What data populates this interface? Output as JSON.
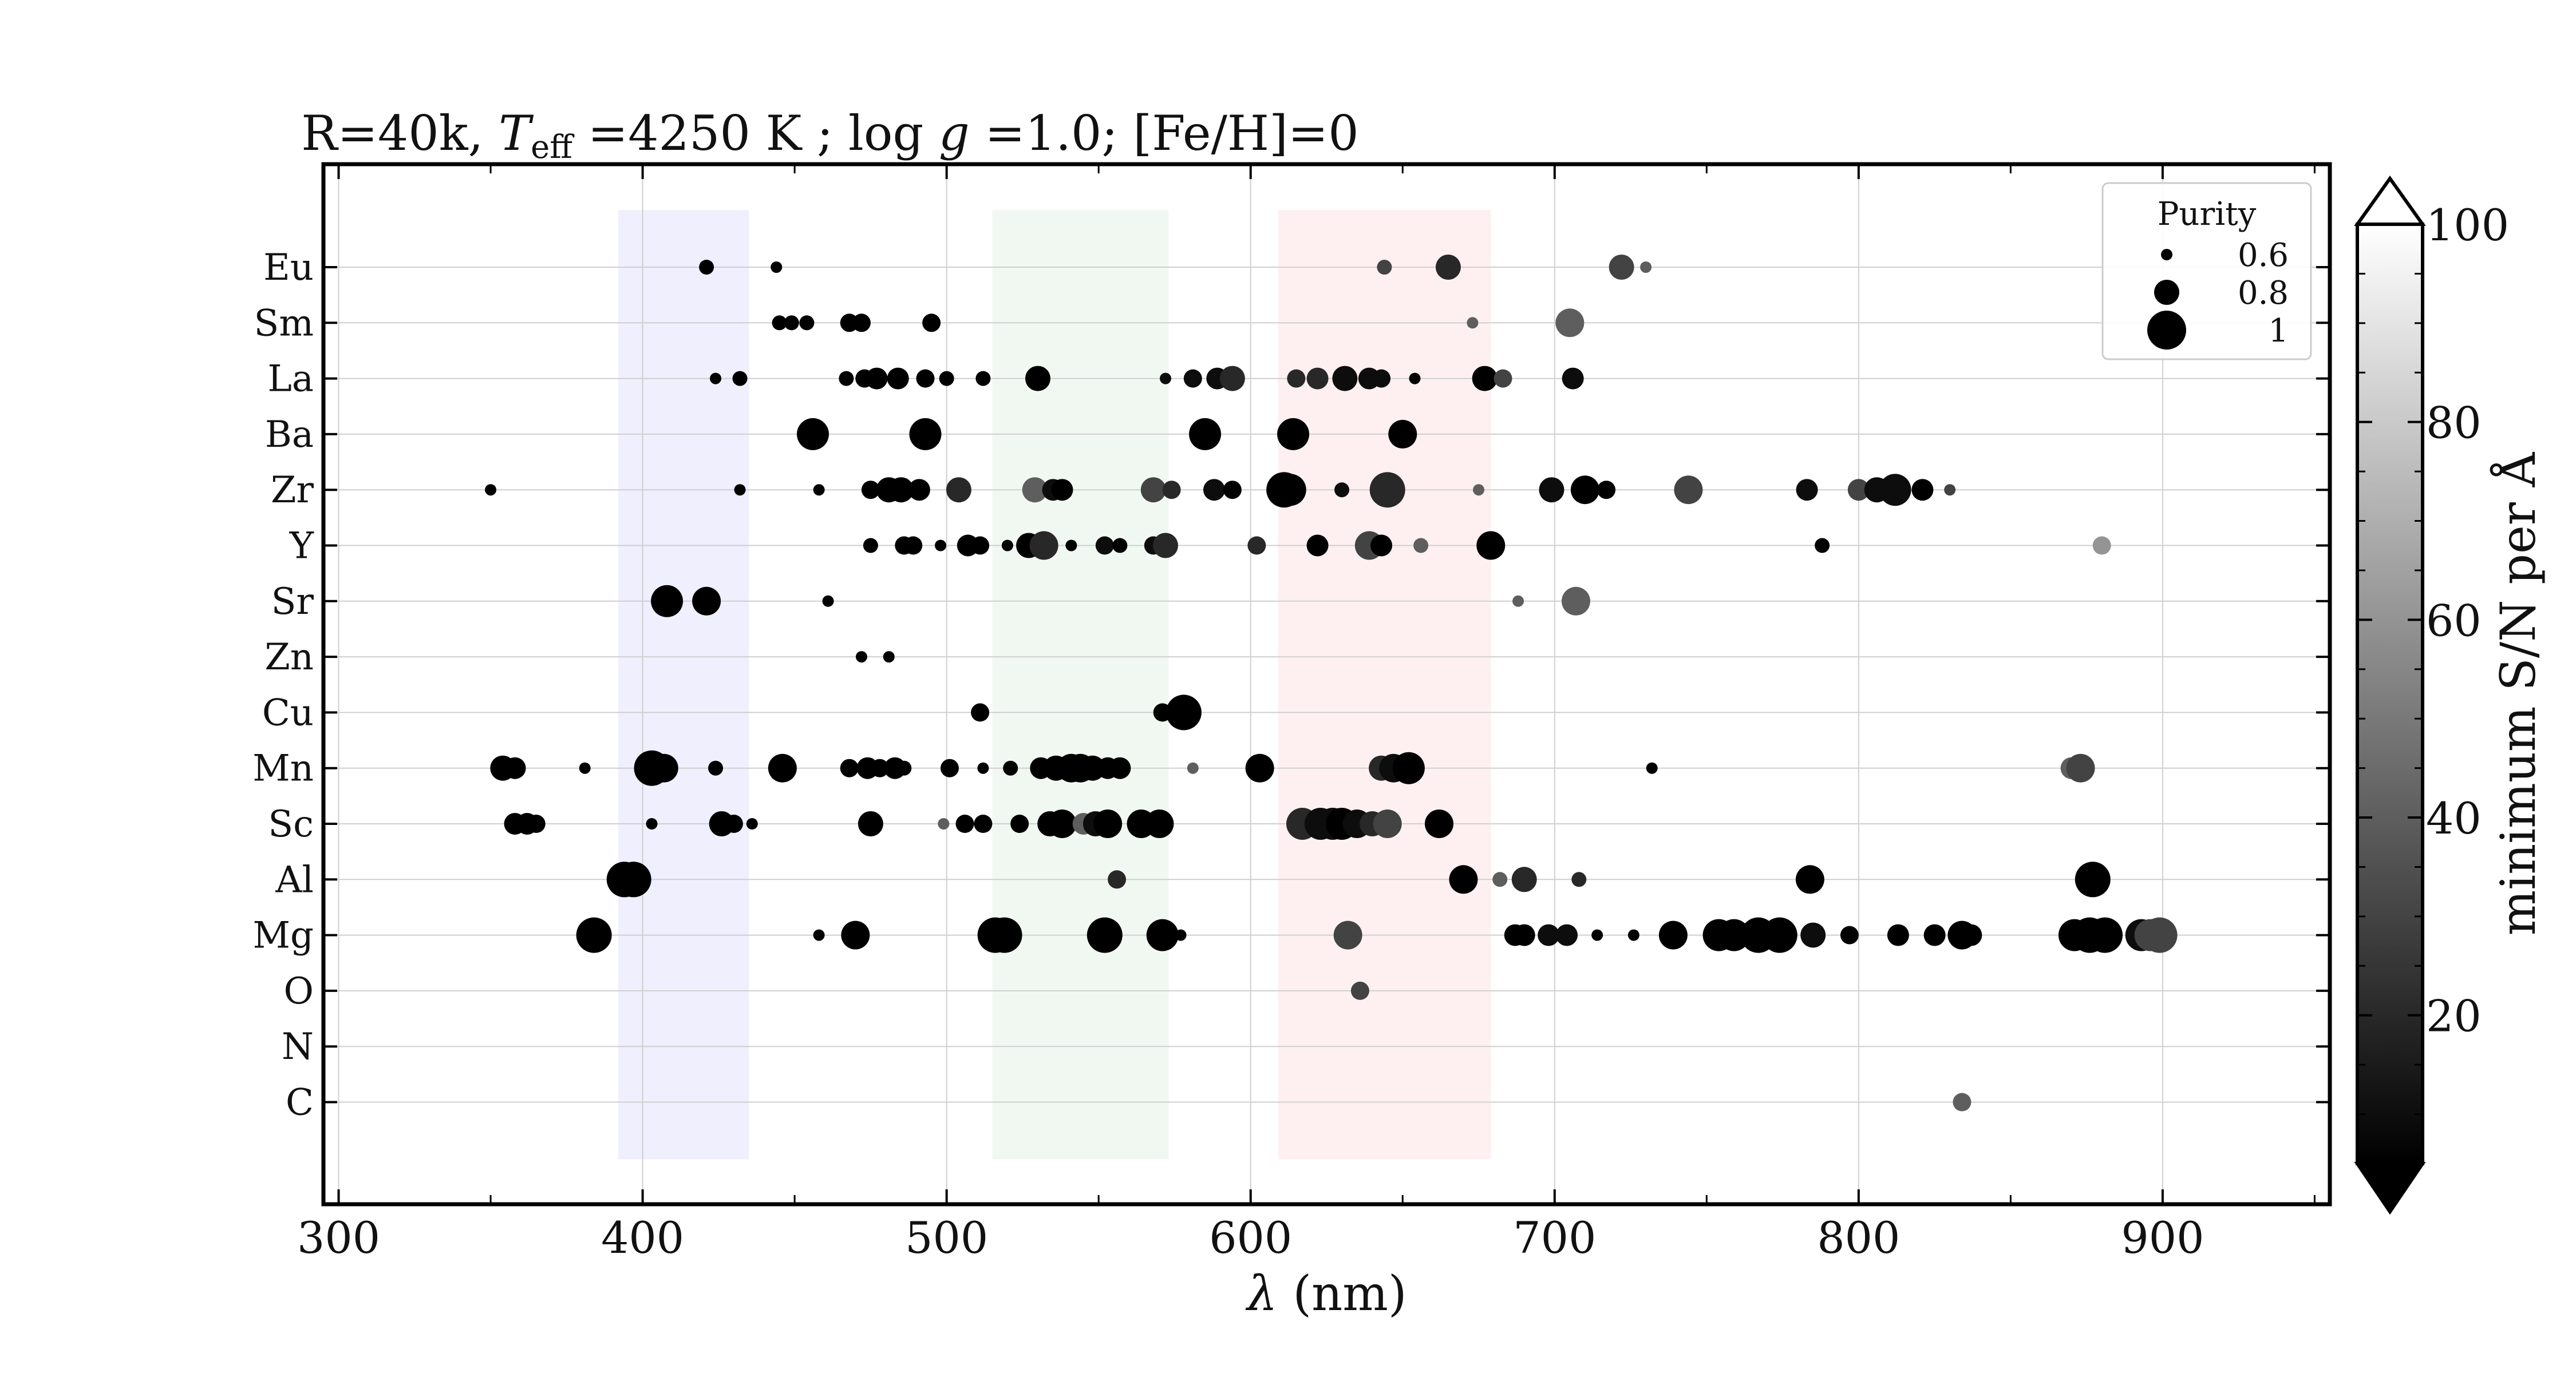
{
  "chart_data": {
    "type": "scatter",
    "title": "R=40k, T_eff =4250 K ; log g =1.0; [Fe/H]=0",
    "title_parts": {
      "t1": "R=40k, ",
      "t2": "T",
      "t2_sub": "eff",
      "t3": " =4250 K ; log ",
      "t4": "g",
      "t5": " =1.0; [Fe/H]=0"
    },
    "xlabel_parts": {
      "symbol": "λ",
      "unit": " (nm)"
    },
    "xlim": [
      295,
      955
    ],
    "x_ticks": [
      "300",
      "400",
      "500",
      "600",
      "700",
      "800",
      "900"
    ],
    "elements": [
      "Eu",
      "Sm",
      "La",
      "Ba",
      "Zr",
      "Y",
      "Sr",
      "Zn",
      "Cu",
      "Mn",
      "Sc",
      "Al",
      "Mg",
      "O",
      "N",
      "C"
    ],
    "bands": [
      {
        "from": 392,
        "to": 435,
        "color": "blue"
      },
      {
        "from": 515,
        "to": 573,
        "color": "green"
      },
      {
        "from": 609,
        "to": 679,
        "color": "red"
      }
    ],
    "legend": {
      "title": "Purity",
      "entries": [
        "0.6",
        "0.8",
        "1"
      ],
      "values": [
        0.6,
        0.8,
        1.0
      ],
      "position": "top-right"
    },
    "colorbar": {
      "label": "minimum S/N per Å",
      "ticks": [
        "20",
        "40",
        "60",
        "80",
        "100"
      ],
      "range": [
        5,
        100
      ],
      "extend": "both"
    },
    "grid": true,
    "points_format": "wavelength_nm, purity, minimum_SN",
    "points": {
      "Eu": [
        [
          421,
          0.65,
          5
        ],
        [
          444,
          0.6,
          5
        ],
        [
          644,
          0.65,
          30
        ],
        [
          665,
          0.8,
          20
        ],
        [
          722,
          0.8,
          30
        ],
        [
          730,
          0.6,
          40
        ]
      ],
      "Sm": [
        [
          445,
          0.65,
          5
        ],
        [
          449,
          0.65,
          5
        ],
        [
          454,
          0.65,
          5
        ],
        [
          468,
          0.7,
          5
        ],
        [
          472,
          0.7,
          5
        ],
        [
          495,
          0.7,
          5
        ],
        [
          673,
          0.6,
          40
        ],
        [
          705,
          0.85,
          40
        ]
      ],
      "La": [
        [
          424,
          0.6,
          5
        ],
        [
          432,
          0.65,
          5
        ],
        [
          467,
          0.65,
          5
        ],
        [
          473,
          0.7,
          5
        ],
        [
          477,
          0.75,
          5
        ],
        [
          484,
          0.75,
          5
        ],
        [
          493,
          0.7,
          5
        ],
        [
          500,
          0.65,
          5
        ],
        [
          512,
          0.65,
          5
        ],
        [
          530,
          0.8,
          5
        ],
        [
          572,
          0.6,
          10
        ],
        [
          581,
          0.7,
          10
        ],
        [
          589,
          0.75,
          10
        ],
        [
          594,
          0.8,
          20
        ],
        [
          615,
          0.7,
          20
        ],
        [
          622,
          0.75,
          20
        ],
        [
          631,
          0.8,
          10
        ],
        [
          639,
          0.75,
          10
        ],
        [
          643,
          0.7,
          10
        ],
        [
          654,
          0.6,
          5
        ],
        [
          677,
          0.8,
          5
        ],
        [
          683,
          0.7,
          30
        ],
        [
          706,
          0.75,
          10
        ]
      ],
      "Ba": [
        [
          456,
          0.9,
          5
        ],
        [
          493,
          0.9,
          5
        ],
        [
          585,
          0.9,
          5
        ],
        [
          614,
          0.9,
          5
        ],
        [
          650,
          0.85,
          5
        ]
      ],
      "Zr": [
        [
          350,
          0.6,
          5
        ],
        [
          432,
          0.6,
          5
        ],
        [
          458,
          0.6,
          5
        ],
        [
          475,
          0.7,
          5
        ],
        [
          481,
          0.8,
          5
        ],
        [
          485,
          0.8,
          5
        ],
        [
          491,
          0.75,
          5
        ],
        [
          504,
          0.8,
          20
        ],
        [
          529,
          0.8,
          40
        ],
        [
          535,
          0.75,
          10
        ],
        [
          538,
          0.75,
          5
        ],
        [
          568,
          0.8,
          30
        ],
        [
          574,
          0.7,
          20
        ],
        [
          588,
          0.75,
          10
        ],
        [
          594,
          0.7,
          5
        ],
        [
          611,
          0.95,
          5
        ],
        [
          613,
          0.9,
          5
        ],
        [
          630,
          0.65,
          10
        ],
        [
          645,
          0.95,
          20
        ],
        [
          675,
          0.6,
          40
        ],
        [
          699,
          0.8,
          10
        ],
        [
          710,
          0.85,
          5
        ],
        [
          717,
          0.7,
          5
        ],
        [
          744,
          0.85,
          30
        ],
        [
          783,
          0.75,
          10
        ],
        [
          800,
          0.75,
          30
        ],
        [
          806,
          0.8,
          10
        ],
        [
          812,
          0.9,
          10
        ],
        [
          821,
          0.75,
          5
        ],
        [
          830,
          0.6,
          30
        ]
      ],
      "Y": [
        [
          475,
          0.65,
          5
        ],
        [
          486,
          0.7,
          5
        ],
        [
          489,
          0.7,
          5
        ],
        [
          498,
          0.6,
          5
        ],
        [
          507,
          0.75,
          5
        ],
        [
          511,
          0.7,
          5
        ],
        [
          520,
          0.6,
          5
        ],
        [
          527,
          0.8,
          5
        ],
        [
          532,
          0.85,
          20
        ],
        [
          541,
          0.6,
          5
        ],
        [
          552,
          0.7,
          10
        ],
        [
          557,
          0.65,
          5
        ],
        [
          568,
          0.7,
          10
        ],
        [
          572,
          0.8,
          20
        ],
        [
          602,
          0.7,
          20
        ],
        [
          622,
          0.75,
          5
        ],
        [
          639,
          0.85,
          30
        ],
        [
          643,
          0.75,
          5
        ],
        [
          656,
          0.65,
          40
        ],
        [
          679,
          0.85,
          5
        ],
        [
          788,
          0.65,
          5
        ],
        [
          880,
          0.7,
          60
        ]
      ],
      "Sr": [
        [
          408,
          0.9,
          5
        ],
        [
          421,
          0.85,
          5
        ],
        [
          461,
          0.6,
          5
        ],
        [
          688,
          0.6,
          40
        ],
        [
          707,
          0.85,
          40
        ]
      ],
      "Zn": [
        [
          472,
          0.6,
          5
        ],
        [
          481,
          0.6,
          5
        ]
      ],
      "Cu": [
        [
          511,
          0.7,
          5
        ],
        [
          571,
          0.7,
          5
        ],
        [
          578,
          0.95,
          5
        ]
      ],
      "Mn": [
        [
          354,
          0.8,
          5
        ],
        [
          358,
          0.75,
          5
        ],
        [
          381,
          0.6,
          5
        ],
        [
          403,
          0.95,
          5
        ],
        [
          407,
          0.85,
          5
        ],
        [
          424,
          0.65,
          5
        ],
        [
          446,
          0.85,
          5
        ],
        [
          468,
          0.7,
          5
        ],
        [
          474,
          0.75,
          5
        ],
        [
          478,
          0.7,
          5
        ],
        [
          483,
          0.75,
          5
        ],
        [
          486,
          0.65,
          5
        ],
        [
          501,
          0.7,
          5
        ],
        [
          512,
          0.6,
          5
        ],
        [
          521,
          0.65,
          5
        ],
        [
          531,
          0.75,
          5
        ],
        [
          536,
          0.8,
          5
        ],
        [
          541,
          0.85,
          5
        ],
        [
          544,
          0.85,
          5
        ],
        [
          548,
          0.8,
          5
        ],
        [
          553,
          0.75,
          5
        ],
        [
          557,
          0.75,
          5
        ],
        [
          581,
          0.6,
          40
        ],
        [
          603,
          0.85,
          5
        ],
        [
          643,
          0.8,
          20
        ],
        [
          647,
          0.85,
          10
        ],
        [
          652,
          0.9,
          5
        ],
        [
          732,
          0.6,
          5
        ],
        [
          870,
          0.75,
          40
        ],
        [
          873,
          0.85,
          30
        ]
      ],
      "Sc": [
        [
          358,
          0.75,
          5
        ],
        [
          362,
          0.75,
          5
        ],
        [
          365,
          0.7,
          5
        ],
        [
          403,
          0.6,
          5
        ],
        [
          426,
          0.8,
          5
        ],
        [
          430,
          0.7,
          5
        ],
        [
          436,
          0.6,
          5
        ],
        [
          475,
          0.8,
          5
        ],
        [
          499,
          0.6,
          40
        ],
        [
          506,
          0.7,
          5
        ],
        [
          512,
          0.7,
          5
        ],
        [
          524,
          0.7,
          5
        ],
        [
          534,
          0.8,
          5
        ],
        [
          538,
          0.85,
          5
        ],
        [
          545,
          0.75,
          40
        ],
        [
          549,
          0.8,
          10
        ],
        [
          553,
          0.85,
          5
        ],
        [
          564,
          0.85,
          5
        ],
        [
          570,
          0.85,
          5
        ],
        [
          617,
          0.9,
          20
        ],
        [
          623,
          0.9,
          10
        ],
        [
          627,
          0.9,
          10
        ],
        [
          630,
          0.9,
          5
        ],
        [
          635,
          0.85,
          10
        ],
        [
          640,
          0.8,
          20
        ],
        [
          645,
          0.85,
          30
        ],
        [
          662,
          0.85,
          5
        ]
      ],
      "Al": [
        [
          394,
          0.95,
          5
        ],
        [
          397,
          0.95,
          5
        ],
        [
          556,
          0.7,
          20
        ],
        [
          670,
          0.85,
          5
        ],
        [
          682,
          0.65,
          40
        ],
        [
          690,
          0.8,
          20
        ],
        [
          708,
          0.65,
          20
        ],
        [
          784,
          0.85,
          5
        ],
        [
          877,
          0.95,
          5
        ]
      ],
      "Mg": [
        [
          384,
          0.95,
          5
        ],
        [
          458,
          0.6,
          5
        ],
        [
          470,
          0.85,
          5
        ],
        [
          516,
          0.95,
          5
        ],
        [
          519,
          0.95,
          5
        ],
        [
          552,
          0.95,
          5
        ],
        [
          571,
          0.9,
          5
        ],
        [
          577,
          0.6,
          5
        ],
        [
          632,
          0.85,
          30
        ],
        [
          687,
          0.75,
          5
        ],
        [
          690,
          0.75,
          5
        ],
        [
          698,
          0.75,
          10
        ],
        [
          704,
          0.75,
          10
        ],
        [
          714,
          0.6,
          5
        ],
        [
          726,
          0.6,
          5
        ],
        [
          739,
          0.85,
          5
        ],
        [
          754,
          0.9,
          5
        ],
        [
          759,
          0.9,
          5
        ],
        [
          767,
          0.95,
          5
        ],
        [
          774,
          0.95,
          5
        ],
        [
          785,
          0.8,
          10
        ],
        [
          797,
          0.7,
          5
        ],
        [
          813,
          0.75,
          5
        ],
        [
          825,
          0.75,
          5
        ],
        [
          834,
          0.85,
          5
        ],
        [
          837,
          0.75,
          5
        ],
        [
          871,
          0.9,
          5
        ],
        [
          876,
          0.95,
          5
        ],
        [
          881,
          0.95,
          5
        ],
        [
          893,
          0.9,
          10
        ],
        [
          896,
          0.9,
          30
        ],
        [
          899,
          0.95,
          30
        ]
      ],
      "O": [
        [
          636,
          0.7,
          30
        ]
      ],
      "N": [],
      "C": [
        [
          834,
          0.7,
          40
        ]
      ]
    }
  }
}
